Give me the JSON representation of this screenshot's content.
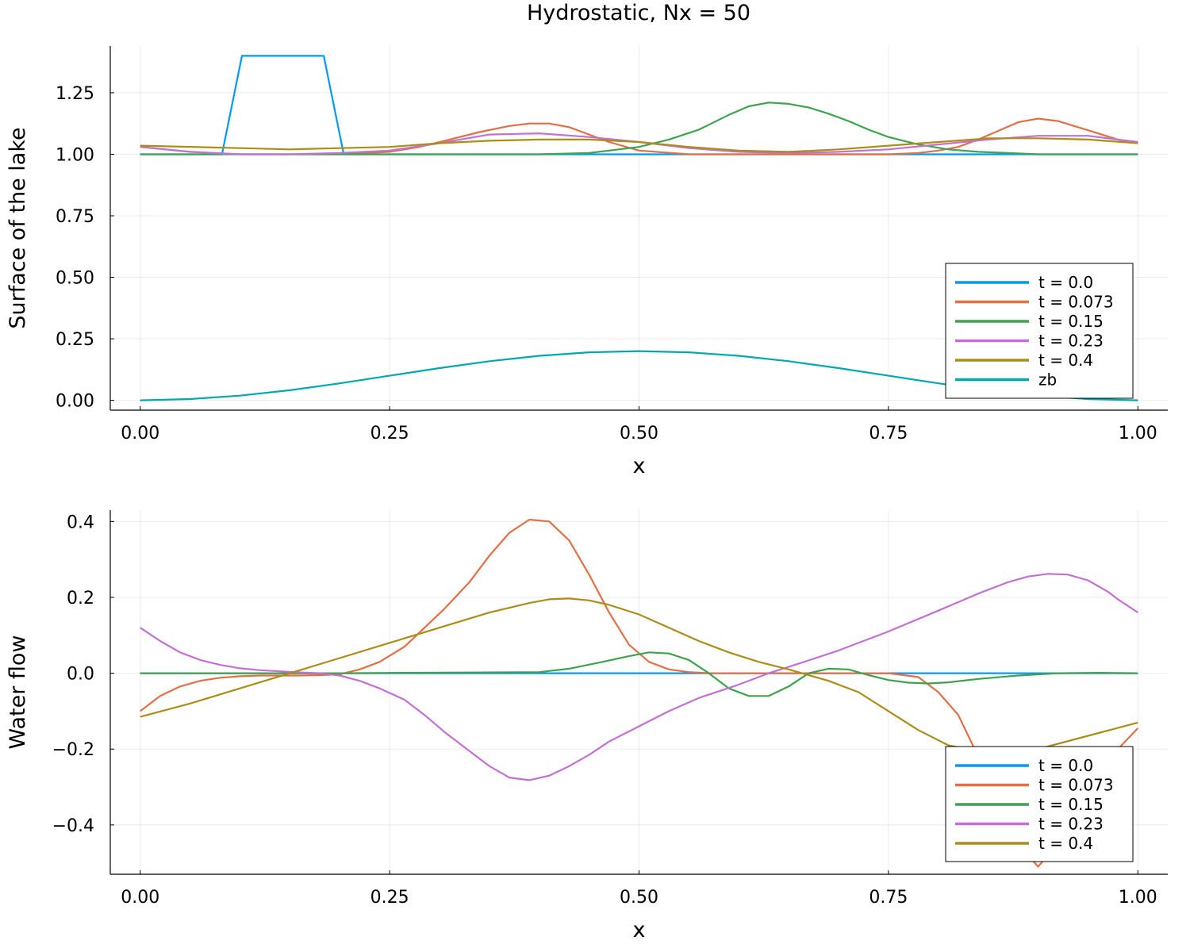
{
  "figure": {
    "title": "Hydrostatic, Nx = 50"
  },
  "chart_data": [
    {
      "type": "line",
      "xlabel": "x",
      "ylabel": "Surface of the lake",
      "xlim": [
        -0.03,
        1.03
      ],
      "ylim": [
        -0.04,
        1.44
      ],
      "xticks": [
        0.0,
        0.25,
        0.5,
        0.75,
        1.0
      ],
      "xtick_labels": [
        "0.00",
        "0.25",
        "0.50",
        "0.75",
        "1.00"
      ],
      "yticks": [
        0.0,
        0.25,
        0.5,
        0.75,
        1.0,
        1.25
      ],
      "ytick_labels": [
        "0.00",
        "0.25",
        "0.50",
        "0.75",
        "1.00",
        "1.25"
      ],
      "grid": true,
      "legend_position": "bottom-right",
      "series": [
        {
          "name": "t = 0.0",
          "color": "#009af9",
          "x": [
            0,
            0.082,
            0.102,
            0.184,
            0.204,
            0.25,
            0.5,
            0.75,
            1.0
          ],
          "y": [
            1.0,
            1.0,
            1.4,
            1.4,
            1.0,
            1.0,
            1.0,
            1.0,
            1.0
          ]
        },
        {
          "name": "t = 0.073",
          "color": "#e26f46",
          "x": [
            0,
            0.05,
            0.1,
            0.15,
            0.2,
            0.25,
            0.28,
            0.31,
            0.34,
            0.37,
            0.39,
            0.41,
            0.43,
            0.45,
            0.47,
            0.5,
            0.55,
            0.6,
            0.65,
            0.7,
            0.75,
            0.78,
            0.8,
            0.82,
            0.84,
            0.86,
            0.88,
            0.9,
            0.92,
            0.94,
            0.96,
            0.98,
            1.0
          ],
          "y": [
            1.03,
            1.01,
            1.0,
            1.0,
            1.0,
            1.01,
            1.03,
            1.06,
            1.09,
            1.115,
            1.125,
            1.125,
            1.11,
            1.08,
            1.05,
            1.015,
            1.0,
            1.0,
            1.0,
            1.0,
            1.0,
            1.005,
            1.015,
            1.03,
            1.06,
            1.095,
            1.13,
            1.145,
            1.135,
            1.11,
            1.085,
            1.06,
            1.045
          ]
        },
        {
          "name": "t = 0.15",
          "color": "#3da44d",
          "x": [
            0,
            0.1,
            0.2,
            0.3,
            0.4,
            0.45,
            0.5,
            0.53,
            0.56,
            0.59,
            0.61,
            0.63,
            0.65,
            0.67,
            0.69,
            0.71,
            0.73,
            0.75,
            0.78,
            0.81,
            0.84,
            0.87,
            0.9,
            0.95,
            1.0
          ],
          "y": [
            1.0,
            1.0,
            1.0,
            1.0,
            1.0,
            1.005,
            1.03,
            1.06,
            1.1,
            1.16,
            1.195,
            1.21,
            1.205,
            1.19,
            1.165,
            1.135,
            1.1,
            1.07,
            1.04,
            1.02,
            1.01,
            1.005,
            1.0,
            1.0,
            1.0
          ]
        },
        {
          "name": "t = 0.23",
          "color": "#c271d2",
          "x": [
            0,
            0.05,
            0.1,
            0.15,
            0.2,
            0.25,
            0.3,
            0.35,
            0.4,
            0.45,
            0.5,
            0.55,
            0.6,
            0.65,
            0.7,
            0.75,
            0.8,
            0.85,
            0.9,
            0.95,
            1.0
          ],
          "y": [
            1.03,
            1.01,
            1.0,
            1.0,
            1.005,
            1.015,
            1.045,
            1.08,
            1.085,
            1.07,
            1.05,
            1.025,
            1.01,
            1.005,
            1.01,
            1.02,
            1.04,
            1.06,
            1.075,
            1.075,
            1.05
          ]
        },
        {
          "name": "t = 0.4",
          "color": "#ac8d18",
          "x": [
            0,
            0.1,
            0.15,
            0.2,
            0.25,
            0.3,
            0.35,
            0.4,
            0.45,
            0.5,
            0.55,
            0.6,
            0.65,
            0.7,
            0.75,
            0.8,
            0.85,
            0.9,
            0.95,
            1.0
          ],
          "y": [
            1.035,
            1.025,
            1.02,
            1.025,
            1.03,
            1.045,
            1.055,
            1.06,
            1.06,
            1.05,
            1.03,
            1.015,
            1.01,
            1.02,
            1.035,
            1.05,
            1.065,
            1.065,
            1.06,
            1.045
          ]
        },
        {
          "name": "zb",
          "color": "#00a9ad",
          "x": [
            0,
            0.05,
            0.1,
            0.15,
            0.2,
            0.25,
            0.3,
            0.35,
            0.4,
            0.45,
            0.5,
            0.55,
            0.6,
            0.65,
            0.7,
            0.75,
            0.8,
            0.85,
            0.9,
            0.95,
            1.0
          ],
          "y": [
            0.0,
            0.005,
            0.019,
            0.041,
            0.069,
            0.1,
            0.131,
            0.159,
            0.181,
            0.195,
            0.2,
            0.195,
            0.181,
            0.159,
            0.131,
            0.1,
            0.069,
            0.041,
            0.019,
            0.005,
            0.0
          ]
        }
      ]
    },
    {
      "type": "line",
      "xlabel": "x",
      "ylabel": "Water flow",
      "xlim": [
        -0.03,
        1.03
      ],
      "ylim": [
        -0.53,
        0.43
      ],
      "xticks": [
        0.0,
        0.25,
        0.5,
        0.75,
        1.0
      ],
      "xtick_labels": [
        "0.00",
        "0.25",
        "0.50",
        "0.75",
        "1.00"
      ],
      "yticks": [
        -0.4,
        -0.2,
        0.0,
        0.2,
        0.4
      ],
      "ytick_labels": [
        "−0.4",
        "−0.2",
        "0.0",
        "0.2",
        "0.4"
      ],
      "grid": true,
      "legend_position": "bottom-right",
      "series": [
        {
          "name": "t = 0.0",
          "color": "#009af9",
          "x": [
            0,
            0.25,
            0.5,
            0.75,
            1.0
          ],
          "y": [
            0.0,
            0.0,
            0.0,
            0.0,
            0.0
          ]
        },
        {
          "name": "t = 0.073",
          "color": "#e26f46",
          "x": [
            0,
            0.02,
            0.04,
            0.06,
            0.08,
            0.1,
            0.12,
            0.14,
            0.16,
            0.18,
            0.2,
            0.22,
            0.24,
            0.265,
            0.285,
            0.305,
            0.33,
            0.35,
            0.37,
            0.39,
            0.41,
            0.43,
            0.45,
            0.47,
            0.49,
            0.51,
            0.53,
            0.55,
            0.57,
            0.6,
            0.65,
            0.7,
            0.75,
            0.78,
            0.8,
            0.82,
            0.84,
            0.86,
            0.88,
            0.9,
            0.92,
            0.94,
            0.96,
            0.98,
            1.0
          ],
          "y": [
            -0.1,
            -0.06,
            -0.035,
            -0.02,
            -0.012,
            -0.008,
            -0.006,
            -0.006,
            -0.006,
            -0.005,
            -0.003,
            0.01,
            0.03,
            0.07,
            0.12,
            0.17,
            0.24,
            0.31,
            0.37,
            0.405,
            0.4,
            0.35,
            0.26,
            0.16,
            0.075,
            0.03,
            0.01,
            0.003,
            0.0,
            0.0,
            0.0,
            0.0,
            0.0,
            -0.01,
            -0.05,
            -0.11,
            -0.22,
            -0.34,
            -0.45,
            -0.51,
            -0.45,
            -0.34,
            -0.26,
            -0.2,
            -0.145
          ]
        },
        {
          "name": "t = 0.15",
          "color": "#3da44d",
          "x": [
            0,
            0.2,
            0.4,
            0.43,
            0.46,
            0.49,
            0.51,
            0.53,
            0.55,
            0.57,
            0.59,
            0.61,
            0.63,
            0.65,
            0.67,
            0.69,
            0.71,
            0.73,
            0.75,
            0.77,
            0.79,
            0.81,
            0.84,
            0.88,
            0.92,
            0.96,
            1.0
          ],
          "y": [
            0.0,
            0.0,
            0.003,
            0.012,
            0.028,
            0.045,
            0.055,
            0.052,
            0.035,
            0.0,
            -0.04,
            -0.06,
            -0.06,
            -0.035,
            0.0,
            0.012,
            0.01,
            -0.005,
            -0.018,
            -0.025,
            -0.027,
            -0.024,
            -0.015,
            -0.006,
            0.0,
            0.001,
            0.0
          ]
        },
        {
          "name": "t = 0.23",
          "color": "#c271d2",
          "x": [
            0,
            0.02,
            0.04,
            0.06,
            0.08,
            0.1,
            0.12,
            0.14,
            0.16,
            0.18,
            0.2,
            0.22,
            0.24,
            0.265,
            0.285,
            0.305,
            0.33,
            0.35,
            0.37,
            0.39,
            0.41,
            0.43,
            0.45,
            0.47,
            0.5,
            0.53,
            0.56,
            0.6,
            0.63,
            0.66,
            0.7,
            0.75,
            0.8,
            0.84,
            0.87,
            0.89,
            0.91,
            0.93,
            0.95,
            0.97,
            0.98,
            1.0
          ],
          "y": [
            0.12,
            0.085,
            0.055,
            0.035,
            0.022,
            0.013,
            0.008,
            0.005,
            0.002,
            0.0,
            -0.006,
            -0.02,
            -0.04,
            -0.07,
            -0.11,
            -0.155,
            -0.205,
            -0.245,
            -0.275,
            -0.282,
            -0.27,
            -0.245,
            -0.215,
            -0.18,
            -0.14,
            -0.1,
            -0.065,
            -0.03,
            0.0,
            0.025,
            0.06,
            0.11,
            0.165,
            0.21,
            0.24,
            0.255,
            0.262,
            0.26,
            0.245,
            0.215,
            0.195,
            0.16
          ]
        },
        {
          "name": "t = 0.4",
          "color": "#ac8d18",
          "x": [
            0,
            0.05,
            0.1,
            0.15,
            0.2,
            0.25,
            0.3,
            0.35,
            0.39,
            0.41,
            0.43,
            0.45,
            0.47,
            0.5,
            0.53,
            0.56,
            0.59,
            0.62,
            0.65,
            0.69,
            0.72,
            0.75,
            0.78,
            0.81,
            0.85,
            0.9,
            0.95,
            1.0
          ],
          "y": [
            -0.115,
            -0.08,
            -0.04,
            0.0,
            0.04,
            0.08,
            0.12,
            0.16,
            0.185,
            0.195,
            0.197,
            0.192,
            0.18,
            0.155,
            0.12,
            0.085,
            0.055,
            0.03,
            0.01,
            -0.02,
            -0.05,
            -0.1,
            -0.15,
            -0.19,
            -0.21,
            -0.2,
            -0.165,
            -0.13
          ]
        }
      ]
    }
  ]
}
